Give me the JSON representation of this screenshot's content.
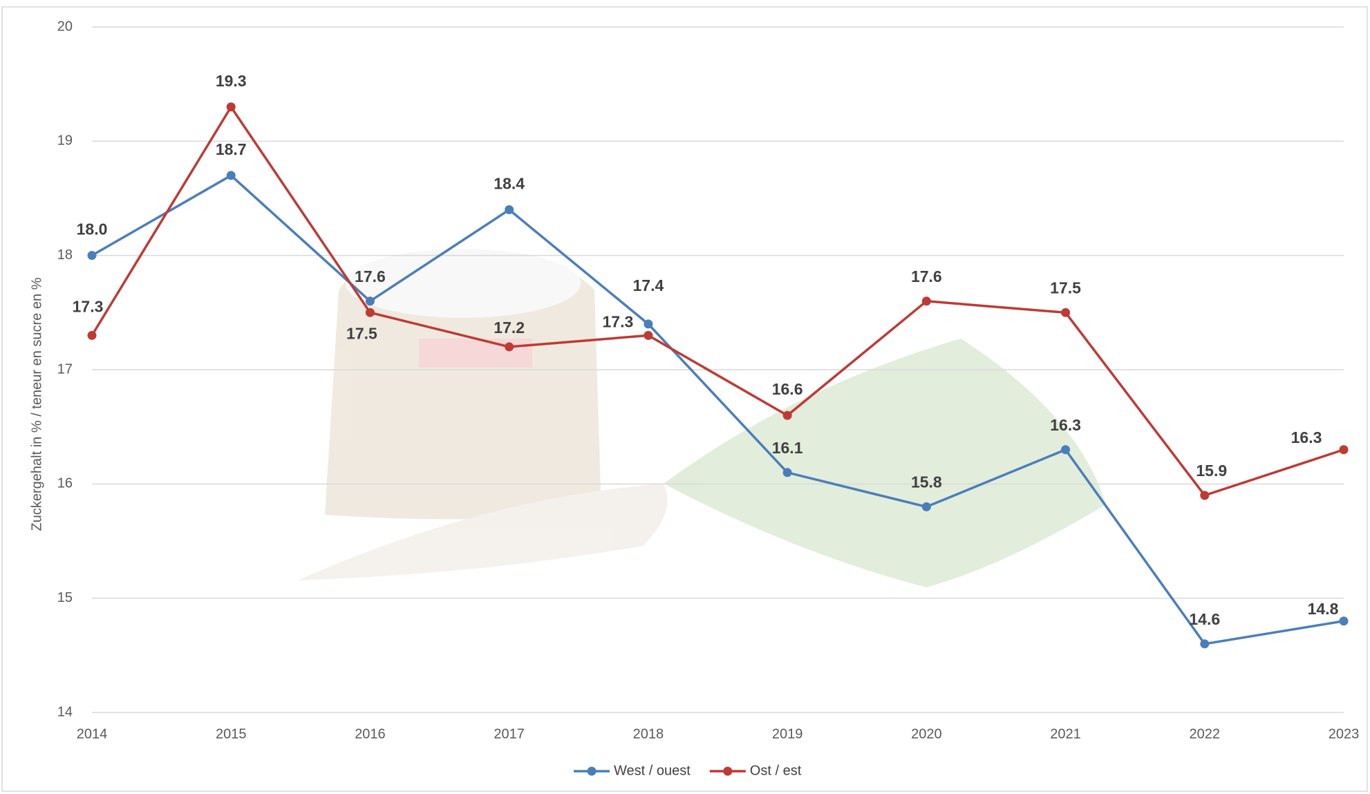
{
  "chart_data": {
    "type": "line",
    "y_label": "Zuckergehalt in % / teneur en sucre en %",
    "categories": [
      "2014",
      "2015",
      "2016",
      "2017",
      "2018",
      "2019",
      "2020",
      "2021",
      "2022",
      "2023"
    ],
    "series": [
      {
        "name": "West / ouest",
        "color": "#4a7ebb",
        "values": [
          18.0,
          18.7,
          17.6,
          18.4,
          17.4,
          16.1,
          15.8,
          16.3,
          14.6,
          14.8
        ],
        "value_labels": [
          "18.0",
          "18.7",
          "17.6",
          "18.4",
          "17.4",
          "16.1",
          "15.8",
          "16.3",
          "14.6",
          "14.8"
        ]
      },
      {
        "name": "Ost / est",
        "color": "#be3a34",
        "values": [
          17.3,
          19.3,
          17.5,
          17.2,
          17.3,
          16.6,
          17.6,
          17.5,
          15.9,
          16.3
        ],
        "value_labels": [
          "17.3",
          "19.3",
          "17.5",
          "17.2",
          "17.3",
          "16.6",
          "17.6",
          "17.5",
          "15.9",
          "16.3"
        ]
      }
    ],
    "ylim": [
      14,
      20
    ],
    "yticks": [
      14,
      15,
      16,
      17,
      18,
      19,
      20
    ],
    "grid": true,
    "legend": "bottom"
  }
}
